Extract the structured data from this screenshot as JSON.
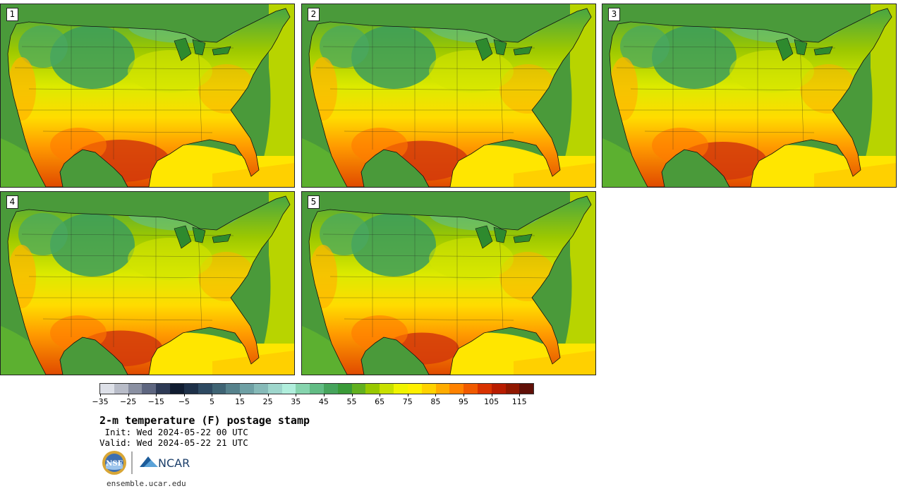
{
  "panels": [
    {
      "label": "1",
      "hot": 1.0
    },
    {
      "label": "2",
      "hot": 0.95
    },
    {
      "label": "3",
      "hot": 0.9
    },
    {
      "label": "4",
      "hot": 0.85
    },
    {
      "label": "5",
      "hot": 0.75
    }
  ],
  "colorbar": {
    "colors": [
      "#dde0e8",
      "#b8bcc8",
      "#8a90a2",
      "#5e6680",
      "#2e3a55",
      "#101c30",
      "#1e3048",
      "#2e4a62",
      "#3f6474",
      "#56828c",
      "#6ea0a4",
      "#86bab8",
      "#9ed6cc",
      "#b0eedc",
      "#86d4ae",
      "#62bc84",
      "#46a45c",
      "#3a9a38",
      "#62b020",
      "#98c800",
      "#c8e000",
      "#f0f400",
      "#fff000",
      "#ffd200",
      "#ffac00",
      "#ff8200",
      "#f05a00",
      "#d83200",
      "#b81c00",
      "#901800",
      "#601008"
    ],
    "tick_labels": [
      "−35",
      "−25",
      "−15",
      "−5",
      "5",
      "15",
      "25",
      "35",
      "45",
      "55",
      "65",
      "75",
      "85",
      "95",
      "105",
      "115"
    ]
  },
  "map_colors": {
    "ocean": "#4a9a3a",
    "coast_water": "#5cb030",
    "gulf": "#ffe600",
    "gulf_edge": "#ffd000",
    "atlantic": "#b8d400"
  },
  "title": "2-m temperature (F) postage stamp",
  "init": " Init: Wed 2024-05-22 00 UTC",
  "valid": "Valid: Wed 2024-05-22 21 UTC",
  "logos": {
    "nsf_text": "NSF",
    "ncar_text": "NCAR"
  },
  "url": "ensemble.ucar.edu"
}
